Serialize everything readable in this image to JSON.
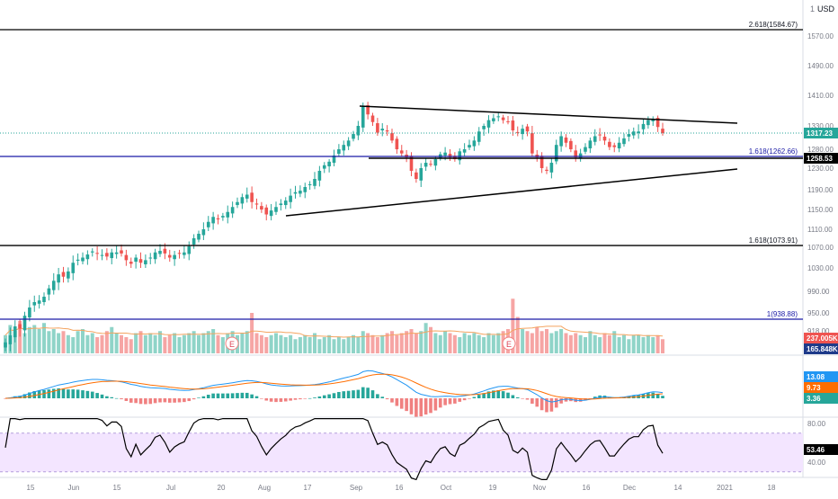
{
  "header": {
    "currency_label": "USD",
    "currency_prefix": "1"
  },
  "colors": {
    "up": "#26a69a",
    "down": "#ef5350",
    "vol_up": "#8fd4c8",
    "vol_down": "#f6a5a4",
    "trend": "#000000",
    "fib_blue": "#1a1aa6",
    "macd_line": "#2196f3",
    "signal_line": "#ff6d00",
    "rsi_line": "#000000",
    "rsi_band": "#f3e5ff",
    "price_label_bg": "#26a69a",
    "last_label_bg": "#000000"
  },
  "chart_data": [
    {
      "type": "candlestick",
      "price_axis_ticks": [
        "1570.00",
        "1490.00",
        "1410.00",
        "1330.00",
        "1280.00",
        "1230.00",
        "1190.00",
        "1150.00",
        "1110.00",
        "1070.00",
        "1030.00",
        "990.00",
        "950.00",
        "918.00"
      ],
      "x_axis_ticks": [
        "15",
        "Jun",
        "15",
        "Jul",
        "20",
        "Aug",
        "17",
        "Sep",
        "16",
        "Oct",
        "19",
        "Nov",
        "16",
        "Dec",
        "14",
        "2021",
        "18"
      ],
      "current_price_label": "1317.23",
      "line_price_label": "1258.53",
      "fib_levels": [
        {
          "label": "2.618(1584.67)",
          "value": 1584.67
        },
        {
          "label": "1.618(1262.66)",
          "value": 1262.66
        },
        {
          "label": "1.618(1073.91)",
          "value": 1073.91
        },
        {
          "label": "1(938.88)",
          "value": 938.88
        }
      ],
      "closes": [
        900,
        911,
        926,
        922,
        945,
        960,
        970,
        973,
        980,
        995,
        1008,
        1019,
        1015,
        1024,
        1040,
        1046,
        1050,
        1056,
        1062,
        1058,
        1055,
        1052,
        1060,
        1060,
        1058,
        1045,
        1038,
        1050,
        1040,
        1045,
        1050,
        1060,
        1063,
        1058,
        1050,
        1055,
        1058,
        1060,
        1072,
        1090,
        1100,
        1110,
        1125,
        1135,
        1130,
        1137,
        1145,
        1155,
        1165,
        1175,
        1180,
        1165,
        1160,
        1150,
        1140,
        1148,
        1155,
        1162,
        1168,
        1178,
        1185,
        1188,
        1195,
        1200,
        1210,
        1225,
        1238,
        1248,
        1265,
        1280,
        1290,
        1300,
        1315,
        1330,
        1380,
        1360,
        1340,
        1318,
        1325,
        1320,
        1300,
        1280,
        1270,
        1260,
        1225,
        1210,
        1230,
        1245,
        1240,
        1255,
        1268,
        1272,
        1260,
        1255,
        1275,
        1280,
        1290,
        1300,
        1320,
        1330,
        1345,
        1350,
        1355,
        1345,
        1340,
        1322,
        1318,
        1325,
        1320,
        1270,
        1260,
        1230,
        1225,
        1245,
        1290,
        1310,
        1295,
        1280,
        1260,
        1270,
        1285,
        1300,
        1310,
        1312,
        1300,
        1285,
        1285,
        1295,
        1305,
        1315,
        1320,
        1320,
        1335,
        1345,
        1347,
        1328,
        1317.23
      ],
      "volume_labels": [
        "237.005K",
        "165.848K"
      ],
      "volume_profile": [
        0.45,
        0.7,
        0.55,
        0.8,
        0.5,
        0.65,
        0.7,
        0.6,
        0.75,
        0.55,
        0.6,
        0.5,
        0.55,
        0.45,
        0.4,
        0.55,
        0.6,
        0.45,
        0.5,
        0.4,
        0.45,
        0.55,
        0.65,
        0.5,
        0.45,
        0.4,
        0.35,
        0.5,
        0.55,
        0.45,
        0.5,
        0.45,
        0.55,
        0.4,
        0.45,
        0.5,
        0.4,
        0.45,
        0.5,
        0.55,
        0.45,
        0.5,
        0.55,
        0.6,
        0.45,
        0.4,
        0.5,
        0.55,
        0.45,
        0.5,
        0.55,
        1.0,
        0.5,
        0.45,
        0.4,
        0.45,
        0.5,
        0.45,
        0.4,
        0.45,
        0.35,
        0.4,
        0.45,
        0.4,
        0.5,
        0.35,
        0.4,
        0.45,
        0.35,
        0.4,
        0.35,
        0.4,
        0.45,
        0.4,
        0.55,
        0.5,
        0.45,
        0.4,
        0.45,
        0.5,
        0.55,
        0.45,
        0.5,
        0.55,
        0.6,
        0.5,
        0.55,
        0.75,
        0.65,
        0.5,
        0.45,
        0.55,
        0.5,
        0.45,
        0.4,
        0.5,
        0.45,
        0.5,
        0.45,
        0.4,
        0.5,
        0.45,
        0.5,
        0.55,
        0.6,
        1.35,
        0.9,
        0.6,
        0.55,
        0.5,
        0.65,
        0.55,
        0.6,
        0.5,
        0.55,
        0.6,
        0.5,
        0.45,
        0.5,
        0.45,
        0.4,
        0.55,
        0.45,
        0.4,
        0.5,
        0.45,
        0.55,
        0.4,
        0.45,
        0.35,
        0.45,
        0.45,
        0.4,
        0.45,
        0.4,
        0.45,
        0.35
      ],
      "macd": {
        "labels": [
          "13.08",
          "9.73",
          "3.36"
        ]
      },
      "rsi": {
        "ticks": [
          "80.00",
          "40.00"
        ],
        "value_label": "53.46"
      }
    }
  ]
}
